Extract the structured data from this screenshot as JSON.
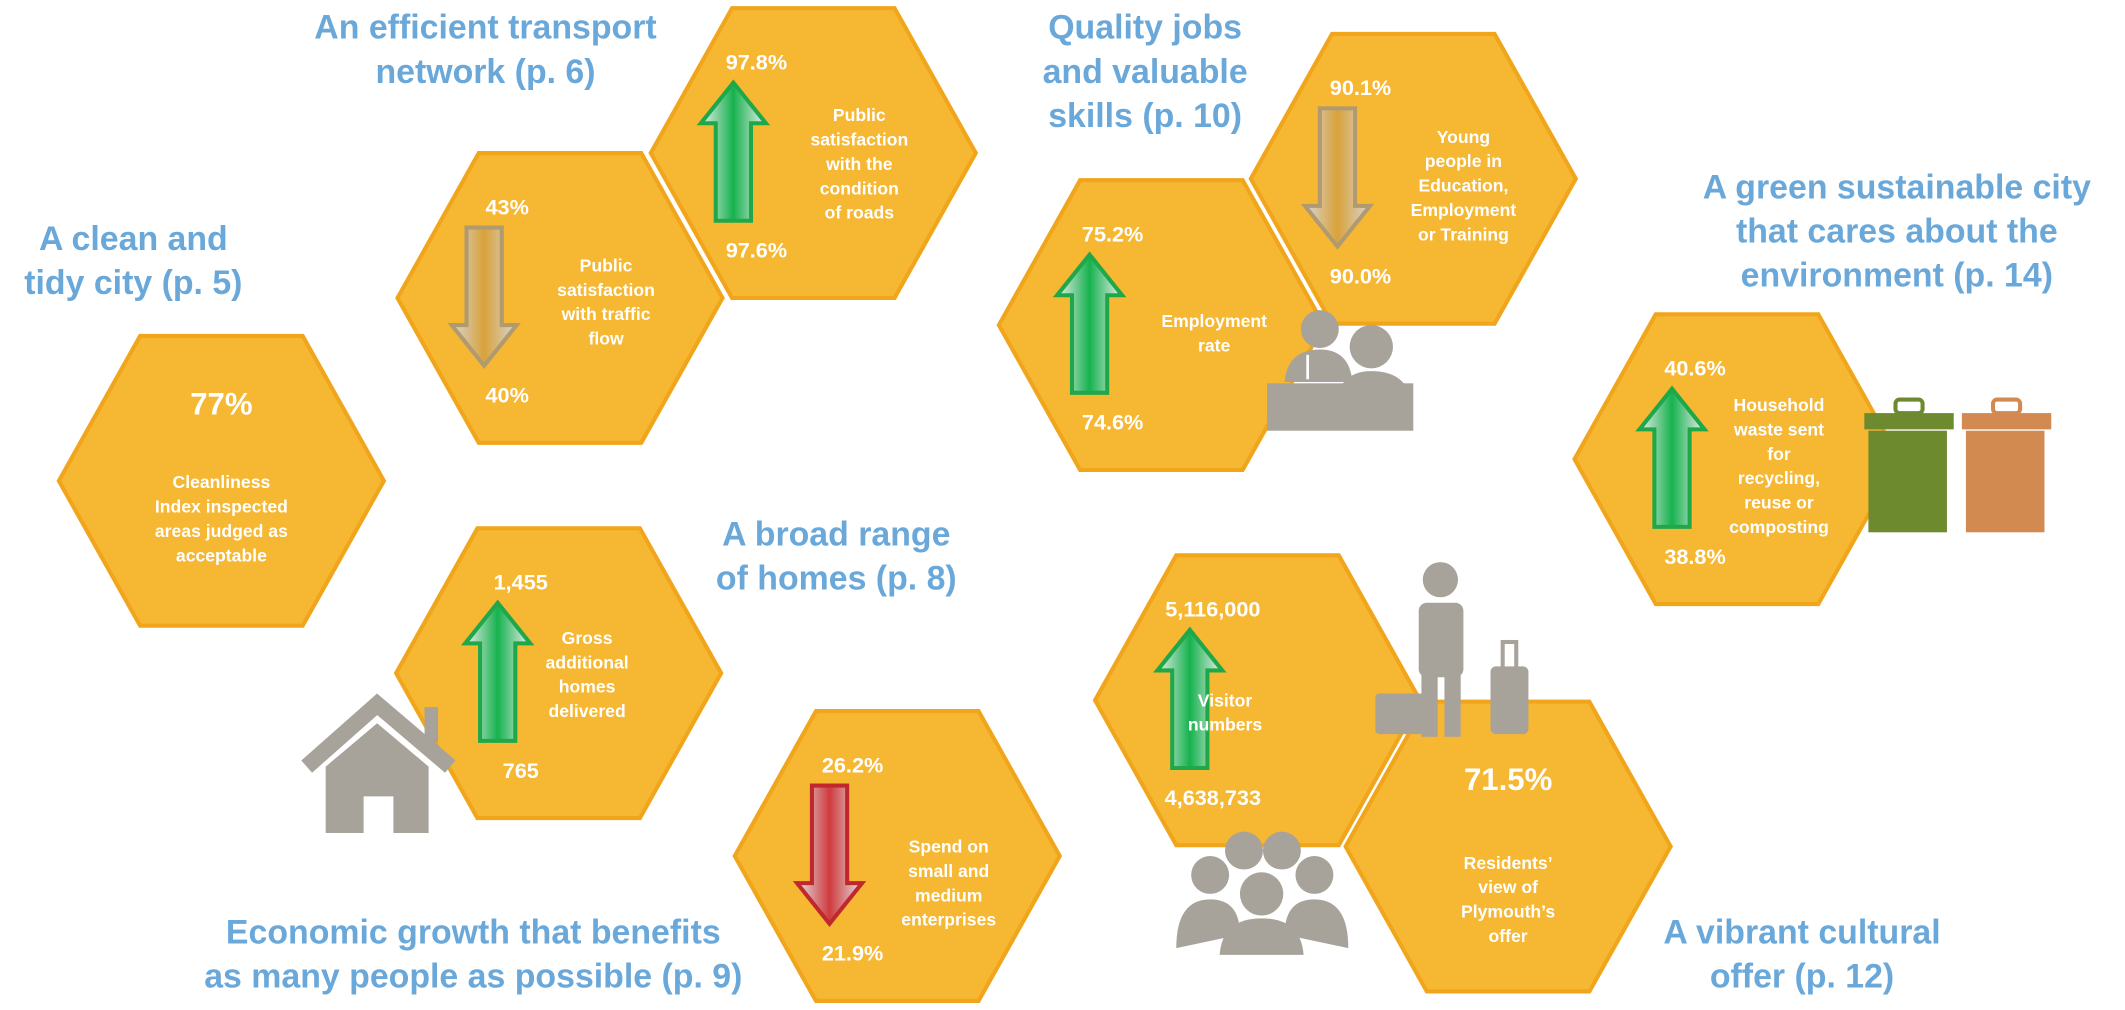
{
  "sections": [
    {
      "heading": [
        "A clean and",
        "tidy city (p. 5)"
      ],
      "indicators": [
        {
          "value": "77%",
          "label": [
            "Cleanliness",
            "Index inspected",
            "areas judged as",
            "acceptable"
          ]
        }
      ]
    },
    {
      "heading": [
        "An efficient transport",
        "network (p. 6)"
      ],
      "indicators": [
        {
          "top": "43%",
          "bottom": "40%",
          "label": [
            "Public",
            "satisfaction",
            "with traffic",
            "flow"
          ]
        },
        {
          "top": "97.8%",
          "bottom": "97.6%",
          "label": [
            "Public",
            "satisfaction",
            "with the",
            "condition",
            "of roads"
          ]
        }
      ]
    },
    {
      "heading": [
        "Quality jobs",
        "and valuable",
        "skills (p. 10)"
      ],
      "indicators": [
        {
          "top": "75.2%",
          "bottom": "74.6%",
          "label": [
            "Employment",
            "rate"
          ]
        },
        {
          "top": "90.1%",
          "bottom": "90.0%",
          "label": [
            "Young",
            "people in",
            "Education,",
            "Employment",
            "or Training"
          ]
        }
      ]
    },
    {
      "heading": [
        "A green sustainable city",
        "that cares about the",
        "environment (p. 14)"
      ],
      "indicators": [
        {
          "top": "40.6%",
          "bottom": "38.8%",
          "label": [
            "Household",
            "waste sent",
            "for",
            "recycling,",
            "reuse or",
            "composting"
          ]
        }
      ]
    },
    {
      "heading": [
        "A broad range",
        "of homes (p. 8)"
      ],
      "indicators": [
        {
          "top": "1,455",
          "bottom": "765",
          "label": [
            "Gross",
            "additional",
            "homes",
            "delivered"
          ]
        }
      ]
    },
    {
      "heading": [
        "Economic growth that benefits",
        "as many people as possible (p. 9)"
      ],
      "indicators": [
        {
          "top": "26.2%",
          "bottom": "21.9%",
          "label": [
            "Spend on",
            "small and",
            "medium",
            "enterprises"
          ]
        }
      ]
    },
    {
      "heading": [
        "A vibrant cultural",
        "offer (p. 12)"
      ],
      "indicators": [
        {
          "top": "5,116,000",
          "bottom": "4,638,733",
          "label": [
            "Visitor",
            "numbers"
          ]
        },
        {
          "value": "71.5%",
          "label": [
            "Residents’",
            "view of",
            "Plymouth’s",
            "offer"
          ]
        }
      ]
    }
  ]
}
